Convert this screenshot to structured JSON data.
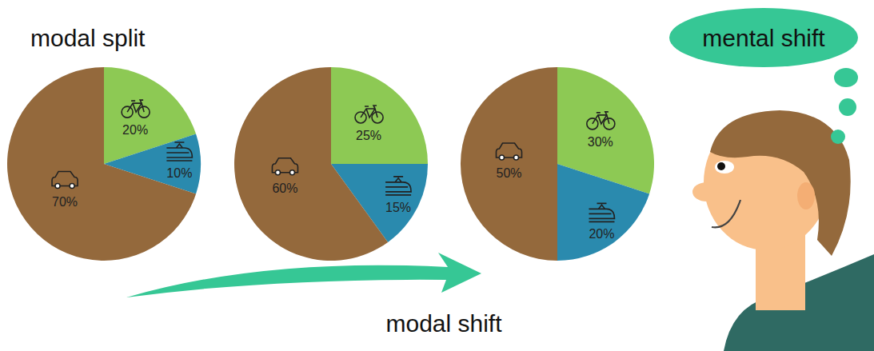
{
  "chart_data": [
    {
      "type": "pie",
      "values": [
        20,
        10,
        70
      ],
      "value_labels": [
        "20%",
        "10%",
        "70%"
      ],
      "colors": [
        "#8dc954",
        "#2a8aae",
        "#94693c"
      ],
      "data_labels": true
    },
    {
      "type": "pie",
      "values": [
        25,
        15,
        60
      ],
      "value_labels": [
        "25%",
        "15%",
        "60%"
      ],
      "colors": [
        "#8dc954",
        "#2a8aae",
        "#94693c"
      ],
      "data_labels": true
    },
    {
      "type": "pie",
      "values": [
        30,
        20,
        50
      ],
      "value_labels": [
        "30%",
        "20%",
        "50%"
      ],
      "colors": [
        "#8dc954",
        "#2a8aae",
        "#94693c"
      ],
      "data_labels": true
    }
  ],
  "annotations": [
    "modal split",
    "modal shift",
    "mental shift"
  ]
}
